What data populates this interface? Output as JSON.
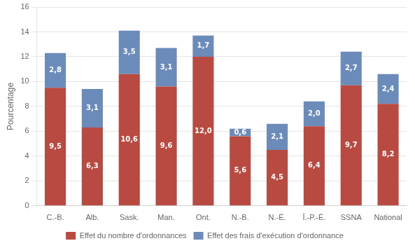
{
  "chart_data": {
    "type": "bar",
    "stacked": true,
    "categories": [
      "C.-B.",
      "Alb.",
      "Sask.",
      "Man.",
      "Ont.",
      "N.-B.",
      "N.-É.",
      "Î.-P.-É.",
      "SSNA",
      "National"
    ],
    "series": [
      {
        "name": "Effet du nombre d'ordonnances",
        "color": "#b94a41",
        "values": [
          9.5,
          6.3,
          10.6,
          9.6,
          12.0,
          5.6,
          4.5,
          6.4,
          9.7,
          8.2
        ],
        "value_labels": [
          "9,5",
          "6,3",
          "10,6",
          "9,6",
          "12,0",
          "5,6",
          "4,5",
          "6,4",
          "9,7",
          "8,2"
        ]
      },
      {
        "name": "Effet des frais d'exécution d'ordonnance",
        "color": "#6b8cba",
        "values": [
          2.8,
          3.1,
          3.5,
          3.1,
          1.7,
          0.6,
          2.1,
          2.0,
          2.7,
          2.4
        ],
        "value_labels": [
          "2,8",
          "3,1",
          "3,5",
          "3,1",
          "1,7",
          "0,6",
          "2,1",
          "2,0",
          "2,7",
          "2,4"
        ]
      }
    ],
    "ylabel": "Pourcentage",
    "ylim": [
      0,
      16
    ],
    "yticks": [
      0,
      2,
      4,
      6,
      8,
      10,
      12,
      14,
      16
    ],
    "grid": true,
    "legend": "bottom",
    "data_labels": true
  }
}
